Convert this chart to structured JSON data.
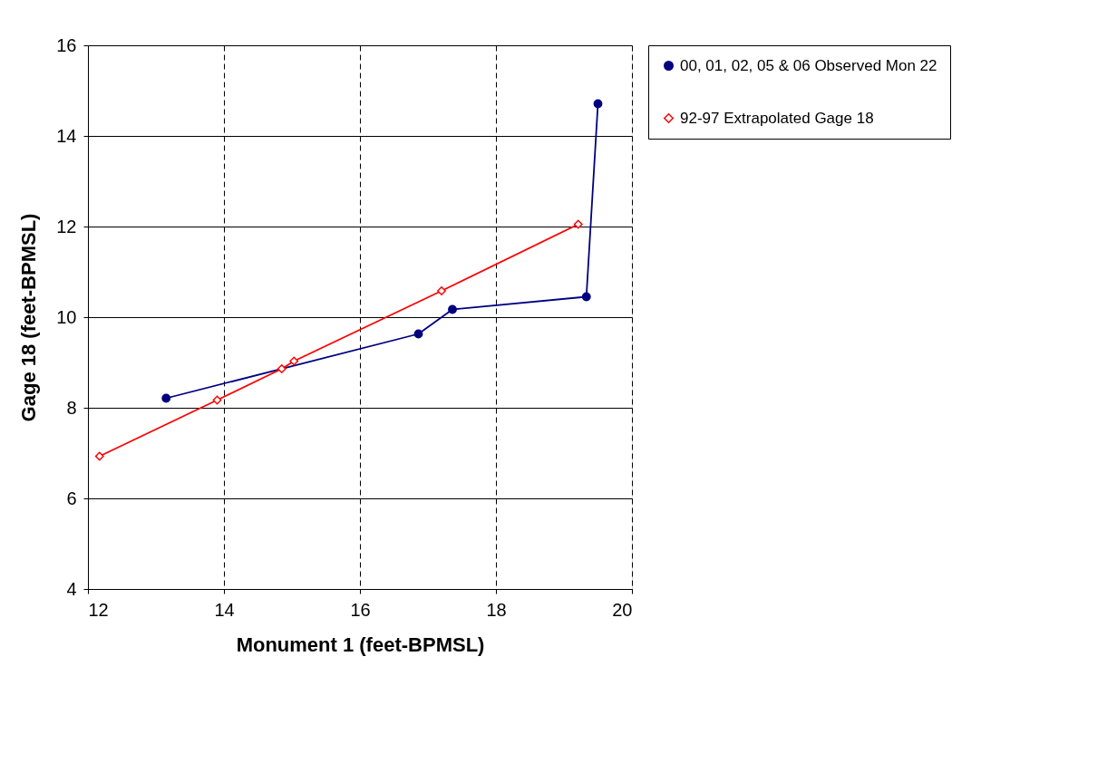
{
  "chart_data": {
    "type": "line",
    "xlabel": "Monument 1 (feet-BPMSL)",
    "ylabel": "Gage 18 (feet-BPMSL)",
    "xlim": [
      12,
      20
    ],
    "xticks": [
      12,
      14,
      16,
      18,
      20
    ],
    "ylim": [
      4,
      16
    ],
    "yticks": [
      4,
      6,
      8,
      10,
      12,
      14,
      16
    ],
    "grid": true,
    "legend": "right",
    "line_style": "solid",
    "series": [
      {
        "name": "00, 01, 02, 05 & 06 Observed Mon 22",
        "color": "#000080",
        "marker": "circle",
        "x": [
          13.15,
          16.86,
          17.36,
          19.33,
          19.5
        ],
        "values": [
          8.21,
          9.63,
          10.17,
          10.45,
          14.71
        ]
      },
      {
        "name": "92-97 Extrapolated Gage 18",
        "color": "#ff0000",
        "marker": "diamond",
        "x": [
          12.17,
          13.9,
          14.85,
          15.03,
          17.2,
          19.21
        ],
        "values": [
          6.93,
          8.17,
          8.86,
          9.03,
          10.58,
          12.05
        ]
      }
    ]
  }
}
